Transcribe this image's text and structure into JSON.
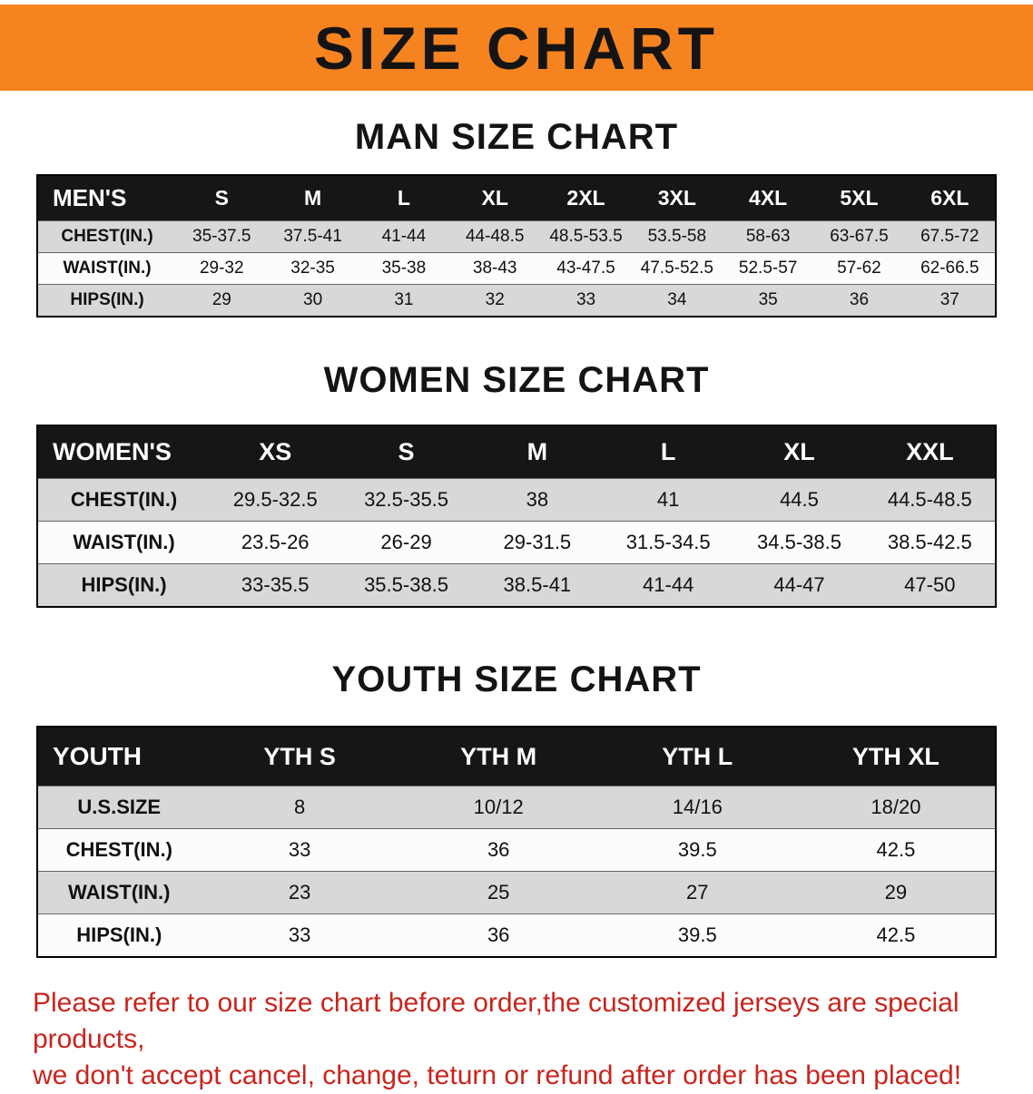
{
  "colors": {
    "banner_bg": "#f5831f",
    "header_bg": "#161616",
    "row_gray": "#d8d8d8",
    "row_white": "#fcfcfc",
    "disclaimer_red": "#c8251d"
  },
  "banner": {
    "title": "SIZE CHART"
  },
  "sections": [
    {
      "heading": "MAN SIZE CHART",
      "table": {
        "header": [
          "MEN'S",
          "S",
          "M",
          "L",
          "XL",
          "2XL",
          "3XL",
          "4XL",
          "5XL",
          "6XL"
        ],
        "rows": [
          {
            "label": "CHEST(IN.)",
            "values": [
              "35-37.5",
              "37.5-41",
              "41-44",
              "44-48.5",
              "48.5-53.5",
              "53.5-58",
              "58-63",
              "63-67.5",
              "67.5-72"
            ]
          },
          {
            "label": "WAIST(IN.)",
            "values": [
              "29-32",
              "32-35",
              "35-38",
              "38-43",
              "43-47.5",
              "47.5-52.5",
              "52.5-57",
              "57-62",
              "62-66.5"
            ]
          },
          {
            "label": "HIPS(IN.)",
            "values": [
              "29",
              "30",
              "31",
              "32",
              "33",
              "34",
              "35",
              "36",
              "37"
            ]
          }
        ]
      }
    },
    {
      "heading": "WOMEN SIZE CHART",
      "table": {
        "header": [
          "WOMEN'S",
          "XS",
          "S",
          "M",
          "L",
          "XL",
          "XXL"
        ],
        "rows": [
          {
            "label": "CHEST(IN.)",
            "values": [
              "29.5-32.5",
              "32.5-35.5",
              "38",
              "41",
              "44.5",
              "44.5-48.5"
            ]
          },
          {
            "label": "WAIST(IN.)",
            "values": [
              "23.5-26",
              "26-29",
              "29-31.5",
              "31.5-34.5",
              "34.5-38.5",
              "38.5-42.5"
            ]
          },
          {
            "label": "HIPS(IN.)",
            "values": [
              "33-35.5",
              "35.5-38.5",
              "38.5-41",
              "41-44",
              "44-47",
              "47-50"
            ]
          }
        ]
      }
    },
    {
      "heading": "YOUTH SIZE CHART",
      "table": {
        "header": [
          "YOUTH",
          "YTH S",
          "YTH M",
          "YTH L",
          "YTH XL"
        ],
        "rows": [
          {
            "label": "U.S.SIZE",
            "values": [
              "8",
              "10/12",
              "14/16",
              "18/20"
            ]
          },
          {
            "label": "CHEST(IN.)",
            "values": [
              "33",
              "36",
              "39.5",
              "42.5"
            ]
          },
          {
            "label": "WAIST(IN.)",
            "values": [
              "23",
              "25",
              "27",
              "29"
            ]
          },
          {
            "label": "HIPS(IN.)",
            "values": [
              "33",
              "36",
              "39.5",
              "42.5"
            ]
          }
        ]
      }
    }
  ],
  "disclaimer": {
    "line1": "Please refer to our size chart before order,the customized jerseys are special products,",
    "line2": "we don't accept cancel, change, teturn or refund after order has been placed!"
  }
}
